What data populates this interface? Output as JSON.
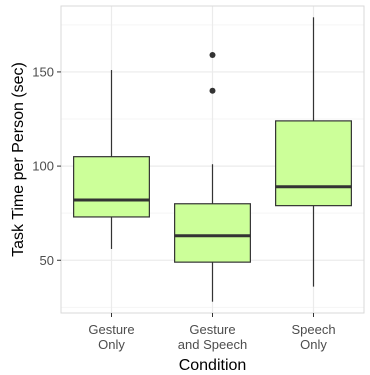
{
  "chart_data": {
    "type": "boxplot",
    "title": "",
    "xlabel": "Condition",
    "ylabel": "Task Time per Person (sec)",
    "ylim": [
      22,
      185
    ],
    "yticks": [
      50,
      100,
      150
    ],
    "grid": true,
    "categories": [
      [
        "Gesture",
        "Only"
      ],
      [
        "Gesture",
        "and Speech"
      ],
      [
        "Speech",
        "Only"
      ]
    ],
    "boxes": [
      {
        "whisker_low": 56,
        "q1": 73,
        "median": 82,
        "q3": 105,
        "whisker_high": 151,
        "outliers": []
      },
      {
        "whisker_low": 28,
        "q1": 49,
        "median": 63,
        "q3": 80,
        "whisker_high": 101,
        "outliers": [
          140,
          159
        ]
      },
      {
        "whisker_low": 36,
        "q1": 79,
        "median": 89,
        "q3": 124,
        "whisker_high": 179,
        "outliers": []
      }
    ],
    "colors": {
      "box_fill": "#ccff99",
      "line": "#333333",
      "grid_major": "#ebebeb",
      "grid_minor": "#f5f5f5",
      "panel_border": "#d9d9d9"
    }
  }
}
